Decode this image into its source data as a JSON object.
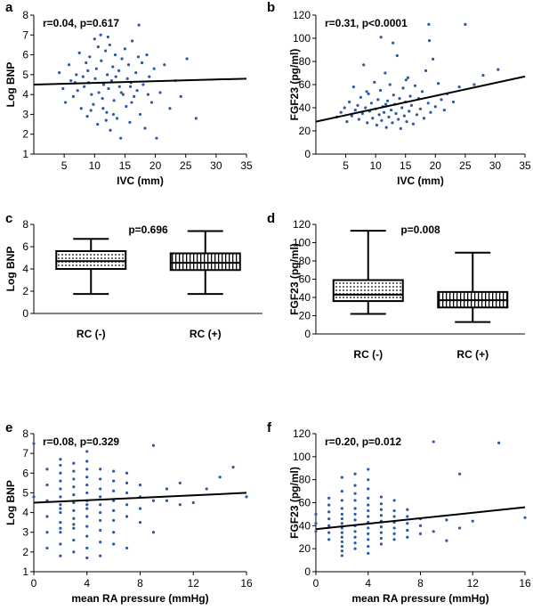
{
  "colors": {
    "points": "#2b5aa6",
    "line": "#000000"
  },
  "panels": [
    {
      "id": "a",
      "type": "scatter",
      "stat": "r=0.04,  p=0.617",
      "xlabel": "IVC (mm)",
      "ylabel": "Log BNP",
      "xlim": [
        0,
        35
      ],
      "ylim": [
        1,
        8
      ],
      "xticks": [
        5,
        10,
        15,
        20,
        25,
        30,
        35
      ],
      "yticks": [
        1,
        2,
        3,
        4,
        5,
        6,
        7,
        8
      ],
      "fit": {
        "x": [
          0,
          35
        ],
        "y": [
          4.5,
          4.8
        ]
      }
    },
    {
      "id": "b",
      "type": "scatter",
      "stat": "r=0.31,  p<0.0001",
      "xlabel": "IVC (mm)",
      "ylabel": "FGF23 (pg/ml)",
      "xlim": [
        0,
        35
      ],
      "ylim": [
        0,
        120
      ],
      "xticks": [
        5,
        10,
        15,
        20,
        25,
        30,
        35
      ],
      "yticks": [
        0,
        20,
        40,
        60,
        80,
        100,
        120
      ],
      "fit": {
        "x": [
          0,
          35
        ],
        "y": [
          28,
          67
        ]
      }
    },
    {
      "id": "c",
      "type": "box",
      "stat": "p=0.696",
      "xlabel": "",
      "ylabel": "Log BNP",
      "ylim": [
        0,
        8
      ],
      "yticks": [
        0,
        2,
        4,
        6,
        8
      ],
      "categories": [
        "RC (-)",
        "RC (+)"
      ],
      "boxes": [
        {
          "min": 1.75,
          "q1": 4.0,
          "median": 4.7,
          "q3": 5.6,
          "max": 6.7,
          "pattern": "dots"
        },
        {
          "min": 1.75,
          "q1": 3.9,
          "median": 4.55,
          "q3": 5.4,
          "max": 7.4,
          "pattern": "stripes"
        }
      ]
    },
    {
      "id": "d",
      "type": "box",
      "stat": "p=0.008",
      "xlabel": "",
      "ylabel": "FGF23 (pg/ml)",
      "ylim": [
        0,
        120
      ],
      "yticks": [
        0,
        20,
        40,
        60,
        80,
        100,
        120
      ],
      "categories": [
        "RC (-)",
        "RC (+)"
      ],
      "boxes": [
        {
          "min": 22,
          "q1": 36,
          "median": 43,
          "q3": 59,
          "max": 113,
          "pattern": "dots"
        },
        {
          "min": 13,
          "q1": 29,
          "median": 37,
          "q3": 46,
          "max": 89,
          "pattern": "stripes"
        }
      ]
    },
    {
      "id": "e",
      "type": "scatter",
      "stat": "r=0.08,  p=0.329",
      "xlabel": "mean RA pressure (mmHg)",
      "ylabel": "Log BNP",
      "xlim": [
        0,
        16
      ],
      "ylim": [
        1,
        8
      ],
      "xticks": [
        0,
        4,
        8,
        12,
        16
      ],
      "yticks": [
        1,
        2,
        3,
        4,
        5,
        6,
        7,
        8
      ],
      "fit": {
        "x": [
          0,
          16
        ],
        "y": [
          4.5,
          5.0
        ]
      }
    },
    {
      "id": "f",
      "type": "scatter",
      "stat": "r=0.20,  p=0.012",
      "xlabel": "mean RA pressure (mmHg)",
      "ylabel": "FGF23 (pg/ml)",
      "xlim": [
        0,
        16
      ],
      "ylim": [
        0,
        120
      ],
      "xticks": [
        0,
        4,
        8,
        12,
        16
      ],
      "yticks": [
        0,
        20,
        40,
        60,
        80,
        100,
        120
      ],
      "fit": {
        "x": [
          0,
          16
        ],
        "y": [
          37,
          56
        ]
      }
    }
  ],
  "chart_data": [
    {
      "type": "scatter",
      "panel": "a",
      "title": "",
      "xlabel": "IVC (mm)",
      "ylabel": "Log BNP",
      "xlim": [
        0,
        35
      ],
      "ylim": [
        1,
        8
      ],
      "annotation": "r=0.04,  p=0.617",
      "points": {
        "x": [
          4.2,
          4.8,
          5.2,
          5.8,
          6.1,
          6.5,
          7.0,
          7.2,
          7.5,
          7.8,
          8.1,
          8.3,
          8.6,
          8.8,
          9.0,
          9.2,
          9.5,
          9.8,
          10.0,
          10.1,
          10.3,
          10.5,
          10.7,
          11.0,
          11.1,
          11.3,
          11.5,
          11.8,
          12.0,
          12.1,
          12.3,
          12.5,
          12.6,
          12.8,
          13.0,
          13.2,
          13.4,
          13.5,
          13.7,
          14.0,
          14.1,
          14.3,
          14.5,
          14.7,
          15.0,
          15.2,
          15.4,
          15.6,
          15.8,
          16.0,
          16.2,
          16.5,
          16.8,
          17.0,
          17.3,
          17.5,
          17.8,
          18.0,
          18.3,
          18.6,
          19.0,
          19.4,
          19.8,
          20.2,
          20.8,
          21.5,
          22.4,
          23.3,
          24.2,
          25.2,
          26.7,
          9.4,
          10.6,
          11.9,
          13.1,
          14.4,
          16.1,
          17.2,
          18.8,
          12.2,
          8.9,
          6.8,
          15.9,
          11.4
        ],
        "y": [
          5.1,
          4.3,
          3.6,
          5.5,
          4.7,
          3.9,
          5.0,
          4.2,
          6.1,
          3.3,
          4.9,
          4.4,
          5.6,
          2.9,
          4.6,
          5.9,
          4.0,
          3.5,
          6.8,
          4.8,
          5.3,
          2.5,
          4.1,
          7.0,
          5.7,
          3.8,
          4.5,
          6.2,
          3.1,
          5.0,
          4.3,
          6.5,
          2.2,
          4.7,
          5.4,
          3.7,
          6.0,
          4.9,
          2.8,
          5.2,
          4.4,
          1.8,
          5.8,
          4.0,
          6.3,
          3.4,
          4.8,
          5.5,
          2.6,
          4.6,
          6.7,
          3.9,
          5.1,
          4.2,
          7.5,
          3.0,
          5.6,
          4.5,
          2.3,
          6.0,
          4.9,
          3.6,
          5.3,
          1.8,
          4.1,
          5.5,
          3.3,
          4.7,
          3.9,
          5.8,
          2.8,
          3.2,
          6.4,
          2.7,
          3.0,
          4.1,
          3.6,
          5.9,
          4.0,
          6.9,
          5.2,
          4.6,
          4.4,
          3.3
        ]
      },
      "fit_line": {
        "x": [
          0,
          35
        ],
        "y": [
          4.5,
          4.8
        ]
      }
    },
    {
      "type": "scatter",
      "panel": "b",
      "title": "",
      "xlabel": "IVC (mm)",
      "ylabel": "FGF23 (pg/ml)",
      "xlim": [
        0,
        35
      ],
      "ylim": [
        0,
        120
      ],
      "annotation": "r=0.31,  p<0.0001",
      "points": {
        "x": [
          3.5,
          4.2,
          4.8,
          5.2,
          5.6,
          6.0,
          6.3,
          6.6,
          7.0,
          7.2,
          7.5,
          7.8,
          8.0,
          8.3,
          8.6,
          8.8,
          9.0,
          9.3,
          9.5,
          9.8,
          10.0,
          10.2,
          10.4,
          10.6,
          10.8,
          11.0,
          11.2,
          11.4,
          11.6,
          11.8,
          12.0,
          12.2,
          12.4,
          12.6,
          12.8,
          13.0,
          13.2,
          13.4,
          13.6,
          13.8,
          14.0,
          14.2,
          14.4,
          14.6,
          14.8,
          15.0,
          15.2,
          15.4,
          15.6,
          15.8,
          16.0,
          16.3,
          16.6,
          16.9,
          17.2,
          17.5,
          17.8,
          18.1,
          18.4,
          18.8,
          19.2,
          19.6,
          20.0,
          20.5,
          21.0,
          21.5,
          22.0,
          23.0,
          24.0,
          25.0,
          26.5,
          28.0,
          30.5,
          19.0,
          18.9,
          10.9,
          12.9,
          8.5,
          15.1,
          11.7
        ],
        "y": [
          32,
          36,
          40,
          28,
          45,
          33,
          58,
          38,
          42,
          30,
          49,
          35,
          77,
          40,
          27,
          52,
          37,
          44,
          31,
          62,
          39,
          25,
          47,
          34,
          55,
          29,
          41,
          36,
          70,
          23,
          46,
          32,
          60,
          38,
          27,
          51,
          43,
          35,
          85,
          30,
          48,
          22,
          40,
          57,
          33,
          45,
          28,
          66,
          37,
          50,
          42,
          26,
          59,
          34,
          48,
          39,
          54,
          31,
          72,
          44,
          36,
          82,
          41,
          61,
          47,
          38,
          52,
          45,
          58,
          112,
          60,
          68,
          73,
          98,
          112,
          101,
          96,
          54,
          64,
          43
        ]
      },
      "fit_line": {
        "x": [
          0,
          35
        ],
        "y": [
          28,
          67
        ]
      }
    },
    {
      "type": "box",
      "panel": "c",
      "title": "",
      "ylabel": "Log BNP",
      "ylim": [
        0,
        8
      ],
      "annotation": "p=0.696",
      "categories": [
        "RC (-)",
        "RC (+)"
      ],
      "series": [
        {
          "name": "RC (-)",
          "min": 1.75,
          "q1": 4.0,
          "median": 4.7,
          "q3": 5.6,
          "max": 6.7
        },
        {
          "name": "RC (+)",
          "min": 1.75,
          "q1": 3.9,
          "median": 4.55,
          "q3": 5.4,
          "max": 7.4
        }
      ]
    },
    {
      "type": "box",
      "panel": "d",
      "title": "",
      "ylabel": "FGF23 (pg/ml)",
      "ylim": [
        0,
        120
      ],
      "annotation": "p=0.008",
      "categories": [
        "RC (-)",
        "RC (+)"
      ],
      "series": [
        {
          "name": "RC (-)",
          "min": 22,
          "q1": 36,
          "median": 43,
          "q3": 59,
          "max": 113
        },
        {
          "name": "RC (+)",
          "min": 13,
          "q1": 29,
          "median": 37,
          "q3": 46,
          "max": 89
        }
      ]
    },
    {
      "type": "scatter",
      "panel": "e",
      "title": "",
      "xlabel": "mean RA pressure (mmHg)",
      "ylabel": "Log BNP",
      "xlim": [
        0,
        16
      ],
      "ylim": [
        1,
        8
      ],
      "annotation": "r=0.08,  p=0.329",
      "points": {
        "x": [
          0,
          0,
          1,
          1,
          1,
          1,
          1,
          1,
          2,
          2,
          2,
          2,
          2,
          2,
          2,
          2,
          2,
          2,
          2,
          2,
          2,
          2,
          3,
          3,
          3,
          3,
          3,
          3,
          3,
          3,
          3,
          3,
          3,
          3,
          4,
          4,
          4,
          4,
          4,
          4,
          4,
          4,
          4,
          4,
          4,
          4,
          4,
          4,
          5,
          5,
          5,
          5,
          5,
          5,
          5,
          5,
          5,
          5,
          6,
          6,
          6,
          6,
          6,
          6,
          6,
          6,
          7,
          7,
          7,
          7,
          7,
          7,
          8,
          8,
          8,
          8,
          9,
          9,
          9,
          10,
          10,
          11,
          11,
          12,
          13,
          14,
          15,
          16
        ],
        "y": [
          7.5,
          4.8,
          2.2,
          3.0,
          3.8,
          4.6,
          5.4,
          6.2,
          1.8,
          2.4,
          3.0,
          3.5,
          4.0,
          4.4,
          4.8,
          5.2,
          5.6,
          6.0,
          6.4,
          6.7,
          3.2,
          4.2,
          2.0,
          2.6,
          3.2,
          3.7,
          4.1,
          4.5,
          4.9,
          5.3,
          5.7,
          6.1,
          6.5,
          3.4,
          1.7,
          2.2,
          2.8,
          3.3,
          3.8,
          4.2,
          4.6,
          5.0,
          5.4,
          5.8,
          6.2,
          6.6,
          7.1,
          4.4,
          1.8,
          2.5,
          3.1,
          3.6,
          4.0,
          4.4,
          4.8,
          5.2,
          5.7,
          6.2,
          2.4,
          3.0,
          3.6,
          4.1,
          4.6,
          5.1,
          5.6,
          6.1,
          2.2,
          3.8,
          4.4,
          5.0,
          5.5,
          6.0,
          3.5,
          4.2,
          4.8,
          5.4,
          3.0,
          4.6,
          7.4,
          4.6,
          5.2,
          4.4,
          5.5,
          4.5,
          5.2,
          5.8,
          6.3,
          4.8
        ]
      },
      "fit_line": {
        "x": [
          0,
          16
        ],
        "y": [
          4.5,
          5.0
        ]
      }
    },
    {
      "type": "scatter",
      "panel": "f",
      "title": "",
      "xlabel": "mean RA pressure (mmHg)",
      "ylabel": "FGF23 (pg/ml)",
      "xlim": [
        0,
        16
      ],
      "ylim": [
        0,
        120
      ],
      "annotation": "r=0.20,  p=0.012",
      "points": {
        "x": [
          0,
          0,
          0,
          1,
          1,
          1,
          1,
          1,
          1,
          1,
          2,
          2,
          2,
          2,
          2,
          2,
          2,
          2,
          2,
          2,
          2,
          2,
          2,
          2,
          3,
          3,
          3,
          3,
          3,
          3,
          3,
          3,
          3,
          3,
          3,
          3,
          4,
          4,
          4,
          4,
          4,
          4,
          4,
          4,
          4,
          4,
          4,
          4,
          4,
          5,
          5,
          5,
          5,
          5,
          5,
          5,
          5,
          5,
          6,
          6,
          6,
          6,
          6,
          6,
          6,
          7,
          7,
          7,
          7,
          7,
          8,
          8,
          8,
          9,
          9,
          10,
          10,
          11,
          11,
          12,
          14,
          16
        ],
        "y": [
          50,
          42,
          35,
          28,
          34,
          40,
          46,
          52,
          58,
          64,
          14,
          18,
          22,
          26,
          30,
          34,
          38,
          42,
          46,
          50,
          55,
          62,
          70,
          82,
          20,
          25,
          30,
          35,
          40,
          45,
          50,
          55,
          62,
          68,
          75,
          85,
          16,
          22,
          28,
          33,
          38,
          43,
          48,
          53,
          58,
          64,
          72,
          80,
          89,
          24,
          29,
          34,
          39,
          44,
          49,
          54,
          59,
          65,
          28,
          33,
          38,
          43,
          48,
          53,
          62,
          30,
          36,
          42,
          48,
          54,
          33,
          40,
          46,
          35,
          113,
          27,
          45,
          38,
          85,
          44,
          112,
          47
        ]
      },
      "fit_line": {
        "x": [
          0,
          16
        ],
        "y": [
          37,
          56
        ]
      }
    }
  ]
}
